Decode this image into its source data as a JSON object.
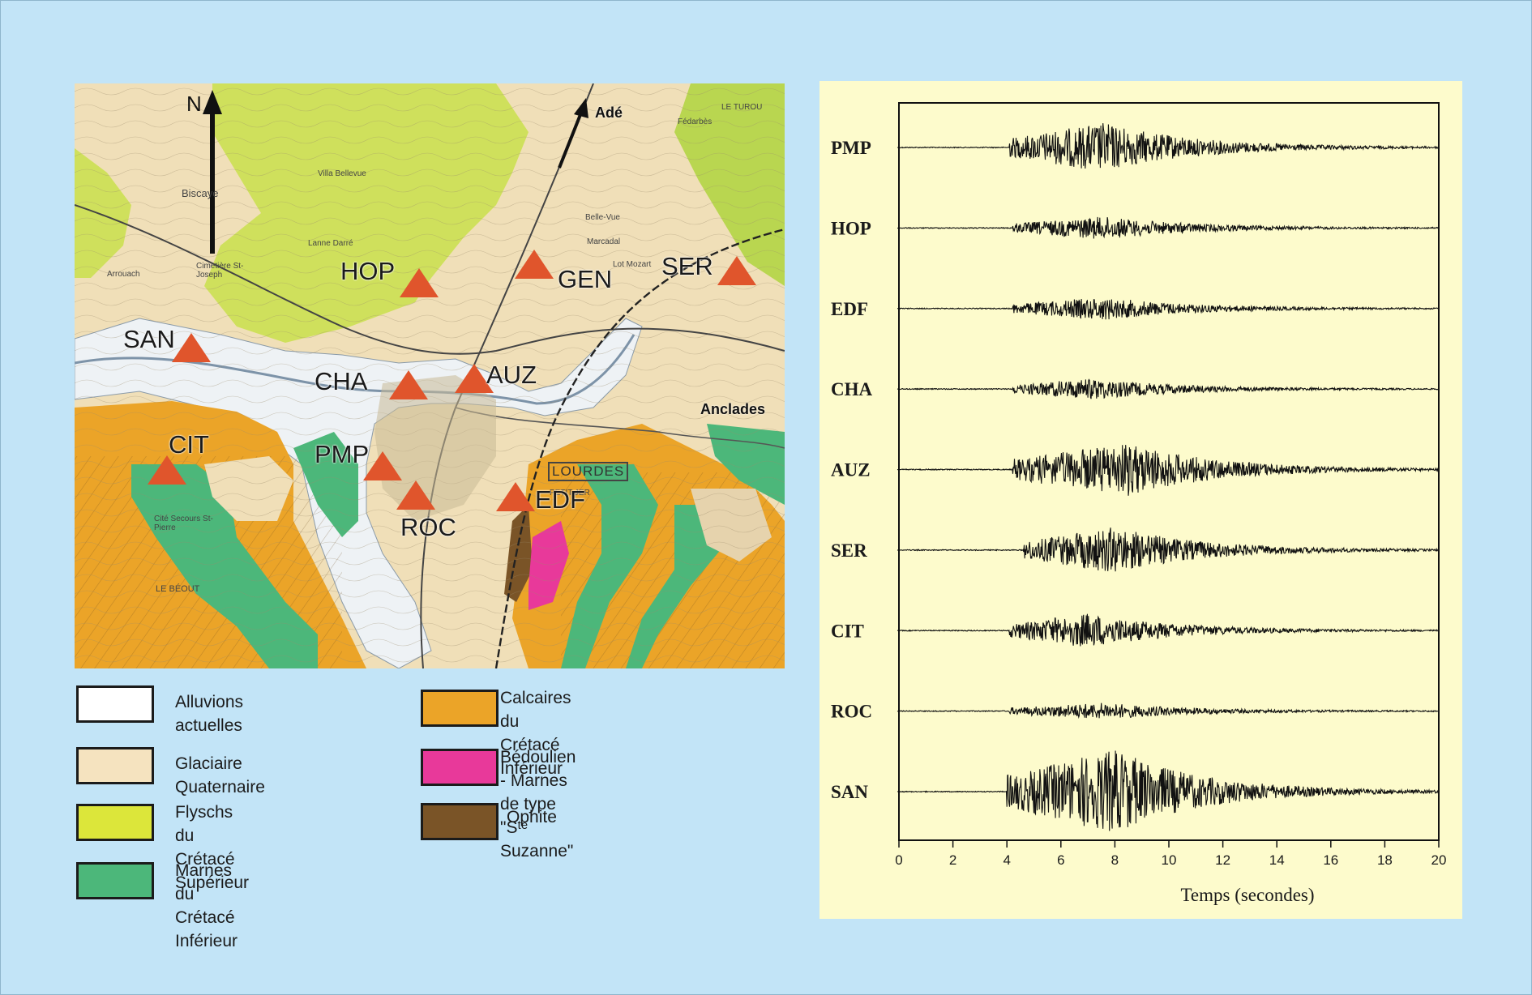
{
  "map": {
    "north_label": "N",
    "places": {
      "ade": "Adé",
      "anclades": "Anclades",
      "lourdes": "LOURDES"
    },
    "topo_names": [
      "Biscaye",
      "Lanne Darré",
      "Villa Bellevue",
      "Belle-Vue",
      "Marcadal",
      "Lot Mozart",
      "Cité Secours St-Pierre",
      "LE BÉOUT",
      "PETIT JER",
      "LE TUROU",
      "Arrouach",
      "Cimetière St-Joseph",
      "Fédarbès"
    ],
    "stations": [
      {
        "name": "HOP",
        "marker": "triangle"
      },
      {
        "name": "GEN",
        "marker": "triangle"
      },
      {
        "name": "SER",
        "marker": "triangle"
      },
      {
        "name": "SAN",
        "marker": "triangle"
      },
      {
        "name": "CHA",
        "marker": "triangle"
      },
      {
        "name": "AUZ",
        "marker": "triangle"
      },
      {
        "name": "CIT",
        "marker": "triangle"
      },
      {
        "name": "PMP",
        "marker": "triangle"
      },
      {
        "name": "ROC",
        "marker": "triangle"
      },
      {
        "name": "EDF",
        "marker": "triangle"
      }
    ],
    "station_color": "#e0552c"
  },
  "legend": [
    {
      "label": "Alluvions actuelles",
      "color": "#ffffff"
    },
    {
      "label": "Glaciaire Quaternaire",
      "color": "#f5e3bf"
    },
    {
      "label": "Flyschs du Crétacé\nSupérieur",
      "color": "#dce63a"
    },
    {
      "label": "Marnes du Crétacé\nInférieur",
      "color": "#4cb77a"
    },
    {
      "label": "Calcaires du Crétacé\nInférieur",
      "color": "#eba428"
    },
    {
      "label": "Bédoulien - Marnes de type\n\"Sᵗᵉ Suzanne\"",
      "color": "#e8399a"
    },
    {
      "label": "Ophite",
      "color": "#7a5427"
    }
  ],
  "chart_data": {
    "type": "line",
    "xlabel": "Temps (secondes)",
    "xlim": [
      0,
      20
    ],
    "xticks": [
      0,
      2,
      4,
      6,
      8,
      10,
      12,
      14,
      16,
      18,
      20
    ],
    "series": [
      {
        "name": "PMP",
        "onset_s": 4.1,
        "peak_s": 7.6,
        "relative_amplitude": 0.55
      },
      {
        "name": "HOP",
        "onset_s": 4.2,
        "peak_s": 7.6,
        "relative_amplitude": 0.2
      },
      {
        "name": "EDF",
        "onset_s": 4.2,
        "peak_s": 7.6,
        "relative_amplitude": 0.2
      },
      {
        "name": "CHA",
        "onset_s": 4.2,
        "peak_s": 7.2,
        "relative_amplitude": 0.18
      },
      {
        "name": "AUZ",
        "onset_s": 4.2,
        "peak_s": 8.5,
        "relative_amplitude": 0.6
      },
      {
        "name": "SER",
        "onset_s": 4.6,
        "peak_s": 8.0,
        "relative_amplitude": 0.5
      },
      {
        "name": "CIT",
        "onset_s": 4.1,
        "peak_s": 7.0,
        "relative_amplitude": 0.35
      },
      {
        "name": "ROC",
        "onset_s": 4.1,
        "peak_s": 7.6,
        "relative_amplitude": 0.12
      },
      {
        "name": "SAN",
        "onset_s": 4.0,
        "peak_s": 8.0,
        "relative_amplitude": 1.0
      }
    ],
    "trace_color": "#111111",
    "background": "#fdfbcc"
  }
}
